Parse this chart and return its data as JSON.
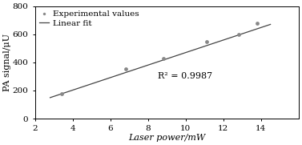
{
  "title": "",
  "xlabel": "Laser power/mW",
  "ylabel": "PA signal/μU",
  "xlim": [
    2,
    16
  ],
  "ylim": [
    0,
    800
  ],
  "xticks": [
    2,
    4,
    6,
    8,
    10,
    12,
    14
  ],
  "yticks": [
    0,
    200,
    400,
    600,
    800
  ],
  "exp_x": [
    3.4,
    6.8,
    8.8,
    11.1,
    12.8,
    13.8
  ],
  "exp_y": [
    175,
    352,
    430,
    545,
    600,
    680
  ],
  "fit_x": [
    2.8,
    14.5
  ],
  "fit_slope": 44.5,
  "fit_intercept": 25,
  "r_squared": "R² = 0.9987",
  "r2_x": 8.5,
  "r2_y": 285,
  "dot_color": "#888888",
  "line_color": "#444444",
  "legend_dot_label": "Experimental values",
  "legend_line_label": "Linear fit",
  "background_color": "#ffffff",
  "font_size": 8,
  "tick_font_size": 7.5,
  "legend_font_size": 7.5
}
